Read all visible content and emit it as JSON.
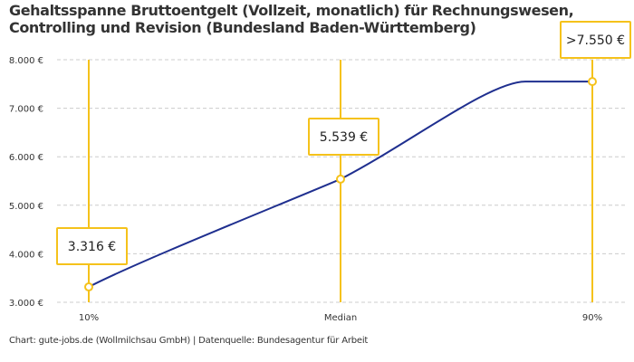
{
  "chart_data": {
    "type": "line",
    "title": "Gehaltsspanne Bruttoentgelt (Vollzeit, monatlich) für Rechnungswesen, Controlling und Revision (Bundesland Baden-Württemberg)",
    "categories": [
      "10%",
      "Median",
      "90%"
    ],
    "values": [
      3316,
      5539,
      7550
    ],
    "data_labels": [
      "3.316 €",
      "5.539 €",
      ">7.550 €"
    ],
    "ylim": [
      3000,
      8000
    ],
    "yticks": [
      3000,
      4000,
      5000,
      6000,
      7000,
      8000
    ],
    "ytick_labels": [
      "3.000 €",
      "4.000 €",
      "5.000 €",
      "6.000 €",
      "7.000 €",
      "8.000 €"
    ],
    "grid": true,
    "colors": {
      "line": "#1f2f8f",
      "marker": "#f5c21b",
      "grid": "#cccccc"
    }
  },
  "source": "Chart: gute-jobs.de (Wollmilchsau GmbH) | Datenquelle: Bundesagentur für Arbeit"
}
